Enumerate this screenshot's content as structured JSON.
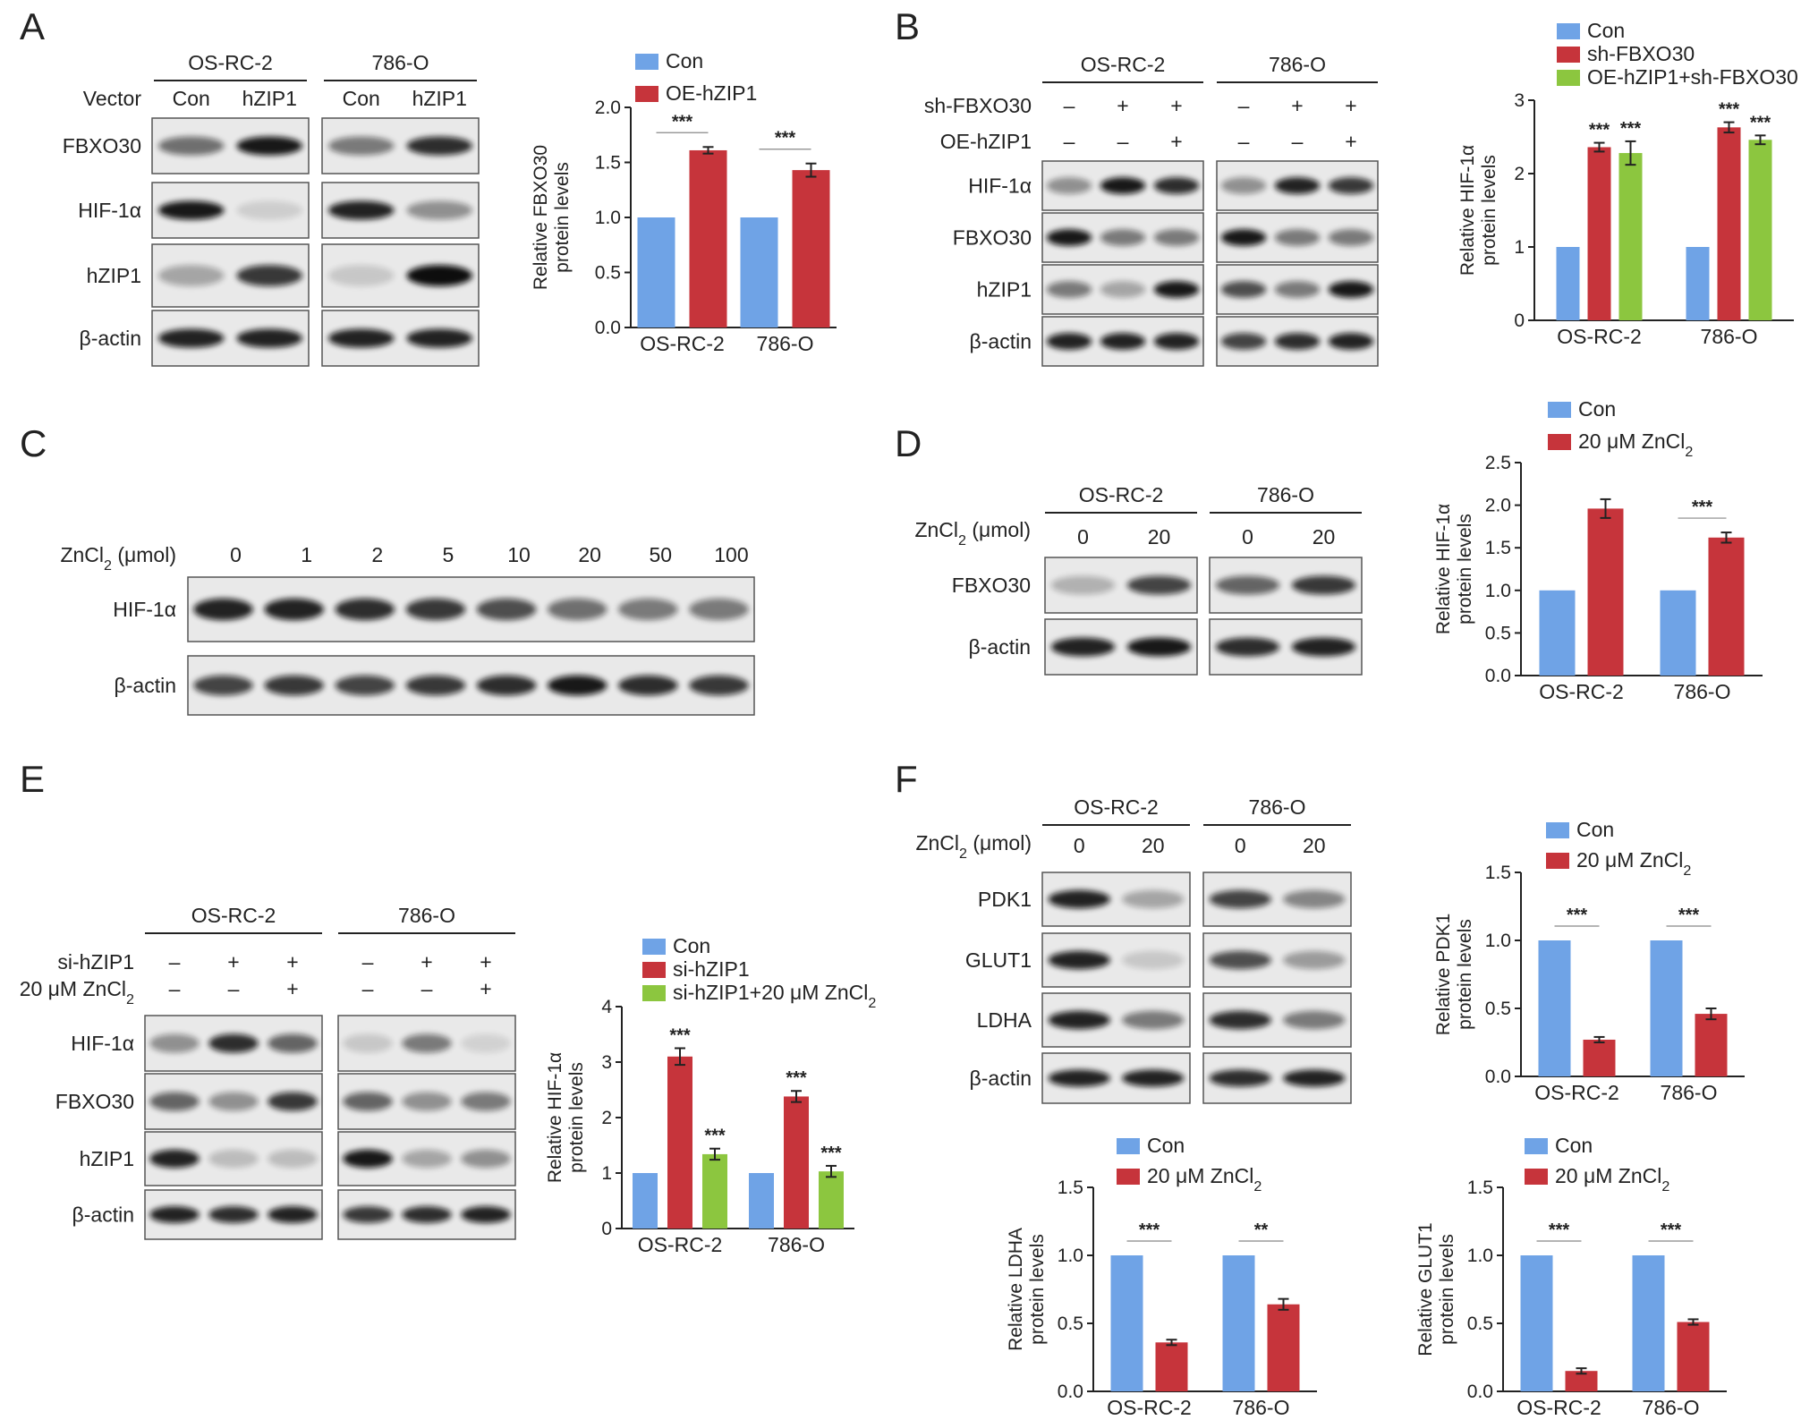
{
  "colors": {
    "con": "#6fa3e6",
    "treat": "#c6343b",
    "third": "#8cc63f",
    "band": "#111111",
    "blot_bg": "#e9e9e9"
  },
  "panels": {
    "A": {
      "letter": "A",
      "row_header": "Vector",
      "groups": [
        {
          "name": "OS-RC-2",
          "lanes": [
            "Con",
            "hZIP1"
          ]
        },
        {
          "name": "786-O",
          "lanes": [
            "Con",
            "hZIP1"
          ]
        }
      ],
      "proteins": [
        "FBXO30",
        "HIF-1α",
        "hZIP1",
        "β-actin"
      ],
      "blot_intensity": [
        [
          [
            0.55,
            0.95
          ],
          [
            0.5,
            0.85
          ]
        ],
        [
          [
            0.95,
            0.12
          ],
          [
            0.9,
            0.4
          ]
        ],
        [
          [
            0.3,
            0.8
          ],
          [
            0.15,
            1.0
          ]
        ],
        [
          [
            0.9,
            0.9
          ],
          [
            0.9,
            0.9
          ]
        ]
      ]
    },
    "B": {
      "letter": "B",
      "groups": [
        "OS-RC-2",
        "786-O"
      ],
      "conditions": [
        {
          "label": "sh-FBXO30",
          "values": [
            "–",
            "+",
            "+",
            "–",
            "+",
            "+"
          ]
        },
        {
          "label": "OE-hZIP1",
          "values": [
            "–",
            "–",
            "+",
            "–",
            "–",
            "+"
          ]
        }
      ],
      "proteins": [
        "HIF-1α",
        "FBXO30",
        "hZIP1",
        "β-actin"
      ],
      "blot_intensity": [
        [
          [
            0.4,
            0.95,
            0.85
          ],
          [
            0.4,
            0.9,
            0.8
          ]
        ],
        [
          [
            0.95,
            0.5,
            0.5
          ],
          [
            0.95,
            0.5,
            0.5
          ]
        ],
        [
          [
            0.5,
            0.3,
            0.95
          ],
          [
            0.7,
            0.5,
            0.95
          ]
        ],
        [
          [
            0.9,
            0.9,
            0.9
          ],
          [
            0.75,
            0.85,
            0.9
          ]
        ]
      ]
    },
    "C": {
      "letter": "C",
      "dose_label": "ZnCl",
      "dose_sub": "2",
      "dose_unit": " (μmol)",
      "doses": [
        "0",
        "1",
        "2",
        "5",
        "10",
        "20",
        "50",
        "100"
      ],
      "proteins": [
        "HIF-1α",
        "β-actin"
      ],
      "blot_intensity": [
        [
          0.9,
          0.9,
          0.85,
          0.8,
          0.7,
          0.55,
          0.5,
          0.5
        ],
        [
          0.75,
          0.8,
          0.75,
          0.8,
          0.85,
          0.95,
          0.85,
          0.8
        ]
      ]
    },
    "D": {
      "letter": "D",
      "groups": [
        "OS-RC-2",
        "786-O"
      ],
      "dose_label": "ZnCl",
      "dose_sub": "2",
      "dose_unit": " (μmol)",
      "doses": [
        "0",
        "20",
        "0",
        "20"
      ],
      "proteins": [
        "FBXO30",
        "β-actin"
      ],
      "blot_intensity": [
        [
          [
            0.25,
            0.75
          ],
          [
            0.6,
            0.8
          ]
        ],
        [
          [
            0.9,
            0.95
          ],
          [
            0.85,
            0.9
          ]
        ]
      ]
    },
    "E": {
      "letter": "E",
      "groups": [
        "OS-RC-2",
        "786-O"
      ],
      "conditions": [
        {
          "label": "si-hZIP1",
          "values": [
            "–",
            "+",
            "+",
            "–",
            "+",
            "+"
          ]
        },
        {
          "label": "20 μM ZnCl",
          "sub": "2",
          "values": [
            "–",
            "–",
            "+",
            "–",
            "–",
            "+"
          ]
        }
      ],
      "proteins": [
        "HIF-1α",
        "FBXO30",
        "hZIP1",
        "β-actin"
      ],
      "blot_intensity": [
        [
          [
            0.4,
            0.85,
            0.6
          ],
          [
            0.15,
            0.5,
            0.1
          ]
        ],
        [
          [
            0.6,
            0.4,
            0.8
          ],
          [
            0.6,
            0.4,
            0.5
          ]
        ],
        [
          [
            0.9,
            0.2,
            0.2
          ],
          [
            0.95,
            0.3,
            0.4
          ]
        ],
        [
          [
            0.9,
            0.85,
            0.9
          ],
          [
            0.8,
            0.85,
            0.9
          ]
        ]
      ]
    },
    "F": {
      "letter": "F",
      "groups": [
        "OS-RC-2",
        "786-O"
      ],
      "dose_label": "ZnCl",
      "dose_sub": "2",
      "dose_unit": " (μmol)",
      "doses": [
        "0",
        "20",
        "0",
        "20"
      ],
      "proteins": [
        "PDK1",
        "GLUT1",
        "LDHA",
        "β-actin"
      ],
      "blot_intensity": [
        [
          [
            0.9,
            0.3
          ],
          [
            0.75,
            0.45
          ]
        ],
        [
          [
            0.9,
            0.15
          ],
          [
            0.7,
            0.35
          ]
        ],
        [
          [
            0.9,
            0.5
          ],
          [
            0.85,
            0.5
          ]
        ],
        [
          [
            0.9,
            0.9
          ],
          [
            0.85,
            0.9
          ]
        ]
      ]
    }
  },
  "chart_data": [
    {
      "id": "A",
      "type": "bar",
      "categories": [
        "OS-RC-2",
        "786-O"
      ],
      "series": [
        {
          "name": "Con",
          "values": [
            1.0,
            1.0
          ],
          "err": [
            0,
            0
          ]
        },
        {
          "name": "OE-hZIP1",
          "values": [
            1.61,
            1.43
          ],
          "err": [
            0.03,
            0.06
          ]
        }
      ],
      "ylabel": [
        "Relative FBXO30",
        "protein levels"
      ],
      "ylim": [
        0,
        2.0
      ],
      "yticks": [
        "0.0",
        "0.5",
        "1.0",
        "1.5",
        "2.0"
      ],
      "significance": [
        {
          "category": 0,
          "text": "***",
          "bracket": true
        },
        {
          "category": 1,
          "text": "***",
          "bracket": true
        }
      ]
    },
    {
      "id": "B",
      "type": "bar",
      "categories": [
        "OS-RC-2",
        "786-O"
      ],
      "series": [
        {
          "name": "Con",
          "values": [
            1.0,
            1.0
          ],
          "err": [
            0,
            0
          ]
        },
        {
          "name": "sh-FBXO30",
          "values": [
            2.36,
            2.63
          ],
          "err": [
            0.06,
            0.07
          ]
        },
        {
          "name": "OE-hZIP1+sh-FBXO30",
          "values": [
            2.28,
            2.46
          ],
          "err": [
            0.16,
            0.06
          ]
        }
      ],
      "ylabel": [
        "Relative HIF-1α",
        "protein levels"
      ],
      "ylim": [
        0,
        3
      ],
      "yticks": [
        "0",
        "1",
        "2",
        "3"
      ],
      "significance": [
        {
          "category": 0,
          "series": 1,
          "text": "***"
        },
        {
          "category": 0,
          "series": 2,
          "text": "***"
        },
        {
          "category": 1,
          "series": 1,
          "text": "***"
        },
        {
          "category": 1,
          "series": 2,
          "text": "***"
        }
      ]
    },
    {
      "id": "D",
      "type": "bar",
      "categories": [
        "OS-RC-2",
        "786-O"
      ],
      "series": [
        {
          "name": "Con",
          "values": [
            1.0,
            1.0
          ],
          "err": [
            0,
            0
          ]
        },
        {
          "name": "20 μM ZnCl",
          "name_sub": "2",
          "values": [
            1.96,
            1.62
          ],
          "err": [
            0.11,
            0.06
          ]
        }
      ],
      "ylabel": [
        "Relative HIF-1α",
        "protein levels"
      ],
      "ylim": [
        0,
        2.5
      ],
      "yticks": [
        "0.0",
        "0.5",
        "1.0",
        "1.5",
        "2.0",
        "2.5"
      ],
      "significance": [
        {
          "category": 1,
          "text": "***",
          "bracket": true
        }
      ]
    },
    {
      "id": "E",
      "type": "bar",
      "categories": [
        "OS-RC-2",
        "786-O"
      ],
      "series": [
        {
          "name": "Con",
          "values": [
            1.0,
            1.0
          ],
          "err": [
            0,
            0
          ]
        },
        {
          "name": "si-hZIP1",
          "values": [
            3.1,
            2.38
          ],
          "err": [
            0.15,
            0.1
          ]
        },
        {
          "name": "si-hZIP1+20 μM ZnCl",
          "name_sub": "2",
          "values": [
            1.34,
            1.03
          ],
          "err": [
            0.1,
            0.1
          ]
        }
      ],
      "ylabel": [
        "Relative HIF-1α",
        "protein levels"
      ],
      "ylim": [
        0,
        4
      ],
      "yticks": [
        "0",
        "1",
        "2",
        "3",
        "4"
      ],
      "significance": [
        {
          "category": 0,
          "series": 1,
          "text": "***"
        },
        {
          "category": 0,
          "series": 2,
          "text": "***"
        },
        {
          "category": 1,
          "series": 1,
          "text": "***"
        },
        {
          "category": 1,
          "series": 2,
          "text": "***"
        }
      ]
    },
    {
      "id": "F-PDK1",
      "type": "bar",
      "categories": [
        "OS-RC-2",
        "786-O"
      ],
      "series": [
        {
          "name": "Con",
          "values": [
            1.0,
            1.0
          ],
          "err": [
            0,
            0
          ]
        },
        {
          "name": "20 μM ZnCl",
          "name_sub": "2",
          "values": [
            0.27,
            0.46
          ],
          "err": [
            0.02,
            0.04
          ]
        }
      ],
      "ylabel": [
        "Relative PDK1",
        "protein levels"
      ],
      "ylim": [
        0,
        1.5
      ],
      "yticks": [
        "0.0",
        "0.5",
        "1.0",
        "1.5"
      ],
      "significance": [
        {
          "category": 0,
          "text": "***",
          "bracket": true
        },
        {
          "category": 1,
          "text": "***",
          "bracket": true
        }
      ]
    },
    {
      "id": "F-LDHA",
      "type": "bar",
      "categories": [
        "OS-RC-2",
        "786-O"
      ],
      "series": [
        {
          "name": "Con",
          "values": [
            1.0,
            1.0
          ],
          "err": [
            0,
            0
          ]
        },
        {
          "name": "20 μM ZnCl",
          "name_sub": "2",
          "values": [
            0.36,
            0.64
          ],
          "err": [
            0.02,
            0.04
          ]
        }
      ],
      "ylabel": [
        "Relative LDHA",
        "protein levels"
      ],
      "ylim": [
        0,
        1.5
      ],
      "yticks": [
        "0.0",
        "0.5",
        "1.0",
        "1.5"
      ],
      "significance": [
        {
          "category": 0,
          "text": "***",
          "bracket": true
        },
        {
          "category": 1,
          "text": "**",
          "bracket": true
        }
      ]
    },
    {
      "id": "F-GLUT1",
      "type": "bar",
      "categories": [
        "OS-RC-2",
        "786-O"
      ],
      "series": [
        {
          "name": "Con",
          "values": [
            1.0,
            1.0
          ],
          "err": [
            0,
            0
          ]
        },
        {
          "name": "20 μM ZnCl",
          "name_sub": "2",
          "values": [
            0.15,
            0.51
          ],
          "err": [
            0.02,
            0.02
          ]
        }
      ],
      "ylabel": [
        "Relative GLUT1",
        "protein levels"
      ],
      "ylim": [
        0,
        1.5
      ],
      "yticks": [
        "0.0",
        "0.5",
        "1.0",
        "1.5"
      ],
      "significance": [
        {
          "category": 0,
          "text": "***",
          "bracket": true
        },
        {
          "category": 1,
          "text": "***",
          "bracket": true
        }
      ]
    }
  ]
}
